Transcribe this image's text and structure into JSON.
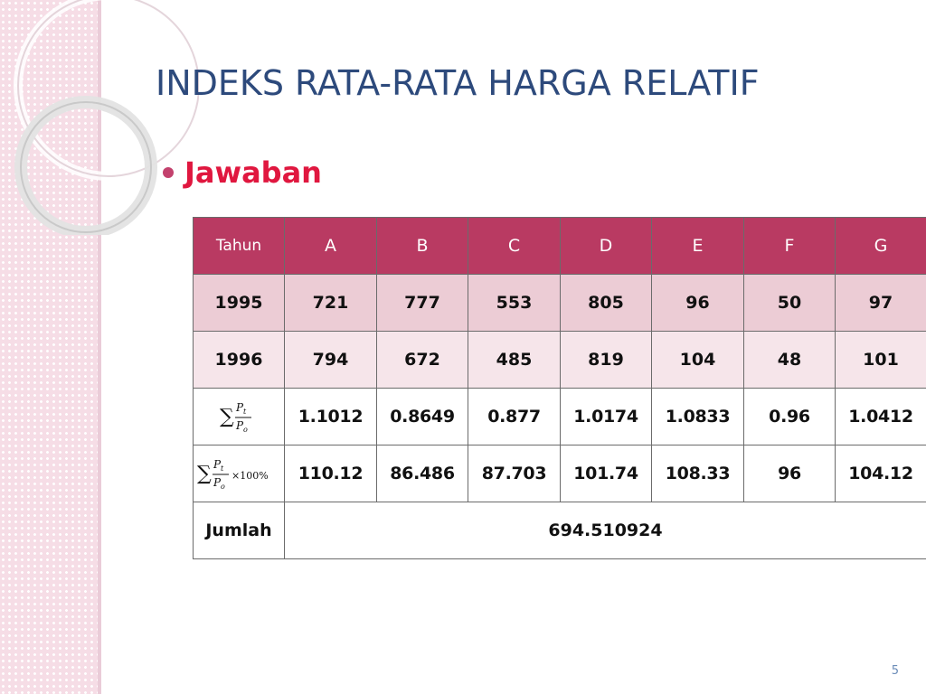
{
  "slide": {
    "title": "INDEKS RATA-RATA HARGA RELATIF",
    "bullet": "Jawaban",
    "page_number": "5"
  },
  "table": {
    "headers": [
      "Tahun",
      "A",
      "B",
      "C",
      "D",
      "E",
      "F",
      "G"
    ],
    "rows": [
      {
        "label": "1995",
        "values": [
          "721",
          "777",
          "553",
          "805",
          "96",
          "50",
          "97"
        ]
      },
      {
        "label": "1996",
        "values": [
          "794",
          "672",
          "485",
          "819",
          "104",
          "48",
          "101"
        ]
      }
    ],
    "ratio_row": {
      "formula": {
        "sum": "∑",
        "numerator": "P",
        "numerator_sub": "t",
        "denominator": "P",
        "denominator_sub": "o"
      },
      "values": [
        "1.1012",
        "0.8649",
        "0.877",
        "1.0174",
        "1.0833",
        "0.96",
        "1.0412"
      ]
    },
    "percent_row": {
      "formula": {
        "sum": "∑",
        "numerator": "P",
        "numerator_sub": "t",
        "denominator": "P",
        "denominator_sub": "o",
        "suffix": "×100%"
      },
      "values": [
        "110.12",
        "86.486",
        "87.703",
        "101.74",
        "108.33",
        "96",
        "104.12"
      ]
    },
    "total_row": {
      "label": "Jumlah",
      "value": "694.510924"
    }
  },
  "colors": {
    "title": "#2d4a7c",
    "bullet_text": "#e0173f",
    "header_bg": "#b93a62",
    "row1_bg": "#ecccd5",
    "row2_bg": "#f6e5ea"
  }
}
